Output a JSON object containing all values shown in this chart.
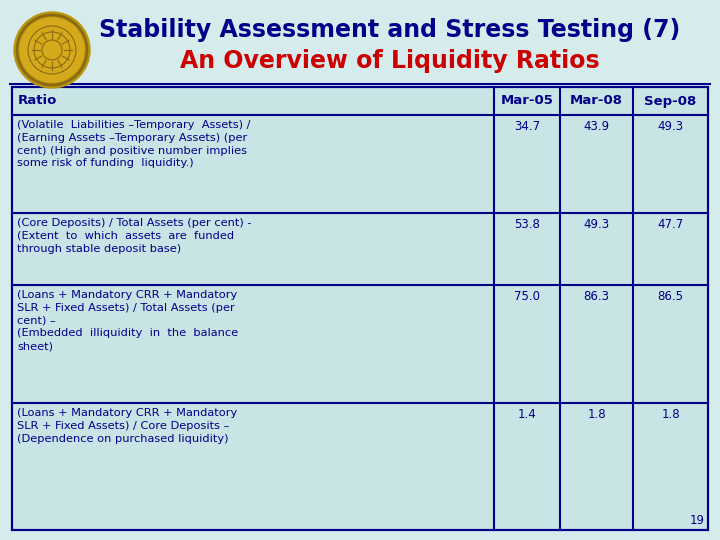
{
  "title_line1": "Stability Assessment and Stress Testing (7)",
  "title_line2": "An Overview of Liquidity Ratios",
  "title_color1": "#00008B",
  "title_color2": "#CC0000",
  "bg_color": "#D6ECEC",
  "table_bg": "#C8E4E4",
  "border_color": "#00008B",
  "text_color": "#00008B",
  "page_number": "19",
  "col_headers": [
    "Ratio",
    "Mar-05",
    "Mar-08",
    "Sep-08"
  ],
  "rows": [
    {
      "ratio": "(Volatile  Liabilities –Temporary  Assets) /\n(Earning Assets –Temporary Assets) (per\ncent) (High and positive number implies\nsome risk of funding  liquidity.)",
      "mar05": "34.7",
      "mar08": "43.9",
      "sep08": "49.3"
    },
    {
      "ratio": "(Core Deposits) / Total Assets (per cent) -\n(Extent  to  which  assets  are  funded\nthrough stable deposit base)",
      "mar05": "53.8",
      "mar08": "49.3",
      "sep08": "47.7"
    },
    {
      "ratio": "(Loans + Mandatory CRR + Mandatory\nSLR + Fixed Assets) / Total Assets (per\ncent) –\n(Embedded  illiquidity  in  the  balance\nsheet)",
      "mar05": "75.0",
      "mar08": "86.3",
      "sep08": "86.5"
    },
    {
      "ratio": "(Loans + Mandatory CRR + Mandatory\nSLR + Fixed Assets) / Core Deposits –\n(Dependence on purchased liquidity)",
      "mar05": "1.4",
      "mar08": "1.8",
      "sep08": "1.8"
    }
  ],
  "logo_color_outer": "#B8960C",
  "logo_color_inner": "#D4AA1A",
  "logo_color_ring": "#8B6914"
}
